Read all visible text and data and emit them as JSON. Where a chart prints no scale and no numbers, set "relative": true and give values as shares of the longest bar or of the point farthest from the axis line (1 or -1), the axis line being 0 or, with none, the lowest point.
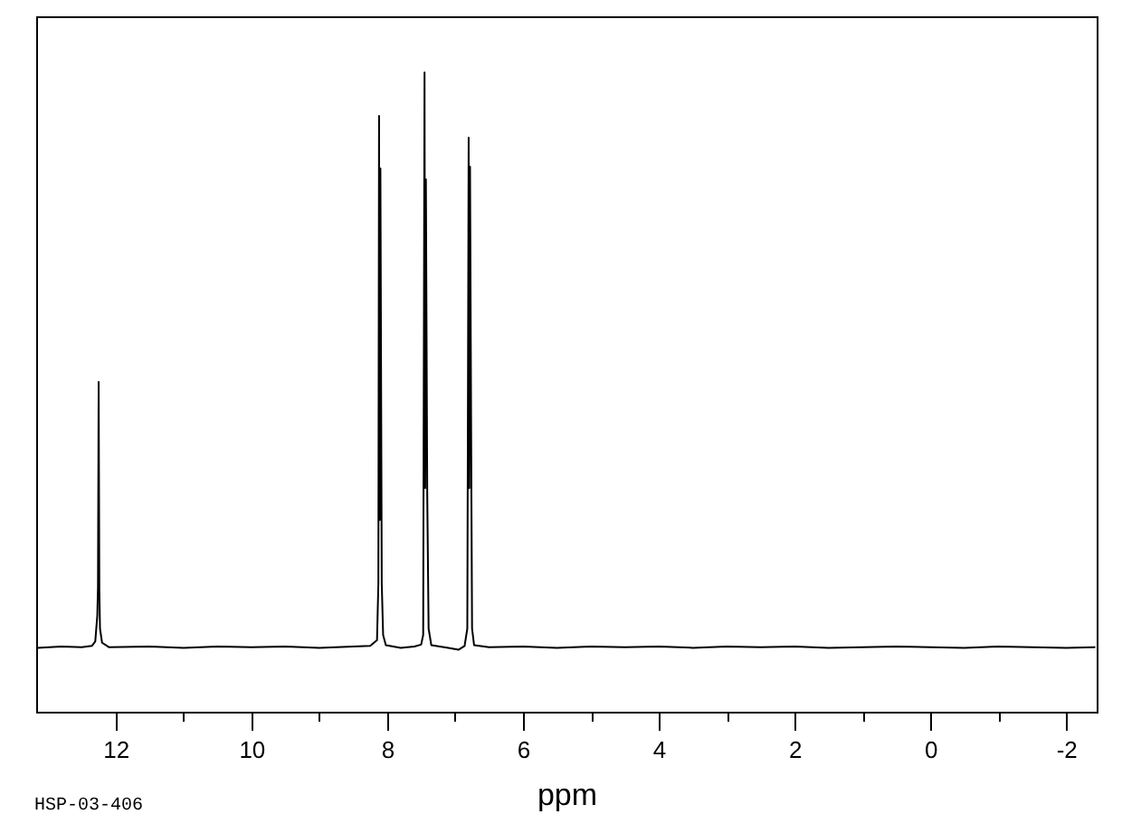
{
  "chart_data": {
    "type": "line",
    "xlabel": "ppm",
    "annotations": [
      "HSP-03-406"
    ],
    "relative": true,
    "xlim": [
      13.17,
      -2.45
    ],
    "xticks": [
      12,
      {
        "value": 11,
        "label": null
      },
      10,
      {
        "value": 9,
        "label": null
      },
      8,
      {
        "value": 7,
        "label": null
      },
      6,
      {
        "value": 5,
        "label": null
      },
      4,
      {
        "value": 3,
        "label": null
      },
      2,
      {
        "value": 1,
        "label": null
      },
      0,
      {
        "value": -1,
        "label": null
      },
      -2
    ],
    "x": [
      13.15,
      12.8,
      12.5,
      12.35,
      12.3,
      12.27,
      12.26,
      12.25,
      12.24,
      12.23,
      12.2,
      12.1,
      11.5,
      11.0,
      10.5,
      10.0,
      9.5,
      9.0,
      8.5,
      8.25,
      8.15,
      8.13,
      8.12,
      8.11,
      8.1,
      8.08,
      8.06,
      8.02,
      7.8,
      7.6,
      7.5,
      7.47,
      7.45,
      7.44,
      7.43,
      7.41,
      7.39,
      7.35,
      7.1,
      6.95,
      6.86,
      6.82,
      6.8,
      6.79,
      6.78,
      6.76,
      6.75,
      6.72,
      6.5,
      6.0,
      5.5,
      5.0,
      4.5,
      4.0,
      3.5,
      3.0,
      2.5,
      2.0,
      1.5,
      1.0,
      0.5,
      0.0,
      -0.5,
      -1.0,
      -1.5,
      -2.0,
      -2.43
    ],
    "series": [
      {
        "color": "#000000",
        "values": [
          0.1,
          0.102,
          0.101,
          0.103,
          0.11,
          0.15,
          0.195,
          0.516,
          0.19,
          0.13,
          0.108,
          0.101,
          0.102,
          0.1,
          0.102,
          0.101,
          0.102,
          0.1,
          0.102,
          0.103,
          0.112,
          0.2,
          0.932,
          0.3,
          0.85,
          0.2,
          0.12,
          0.104,
          0.1,
          0.102,
          0.105,
          0.12,
          1.0,
          0.35,
          0.833,
          0.34,
          0.13,
          0.104,
          0.1,
          0.097,
          0.103,
          0.13,
          0.898,
          0.35,
          0.853,
          0.35,
          0.13,
          0.104,
          0.101,
          0.102,
          0.1,
          0.102,
          0.101,
          0.102,
          0.1,
          0.102,
          0.101,
          0.102,
          0.1,
          0.101,
          0.102,
          0.101,
          0.1,
          0.102,
          0.101,
          0.1,
          0.101
        ]
      }
    ]
  }
}
